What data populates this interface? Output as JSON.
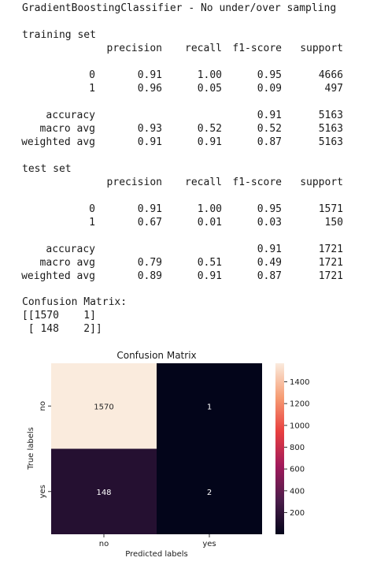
{
  "title": "GradientBoostingClassifier - No under/over sampling",
  "columns": [
    "precision",
    "recall",
    "f1-score",
    "support"
  ],
  "training": {
    "label": "training set",
    "rows": [
      {
        "name": "0",
        "precision": "0.91",
        "recall": "1.00",
        "f1": "0.95",
        "support": "4666"
      },
      {
        "name": "1",
        "precision": "0.96",
        "recall": "0.05",
        "f1": "0.09",
        "support": "497"
      }
    ],
    "summary": [
      {
        "name": "accuracy",
        "precision": "",
        "recall": "",
        "f1": "0.91",
        "support": "5163"
      },
      {
        "name": "macro avg",
        "precision": "0.93",
        "recall": "0.52",
        "f1": "0.52",
        "support": "5163"
      },
      {
        "name": "weighted avg",
        "precision": "0.91",
        "recall": "0.91",
        "f1": "0.87",
        "support": "5163"
      }
    ]
  },
  "test": {
    "label": "test set",
    "rows": [
      {
        "name": "0",
        "precision": "0.91",
        "recall": "1.00",
        "f1": "0.95",
        "support": "1571"
      },
      {
        "name": "1",
        "precision": "0.67",
        "recall": "0.01",
        "f1": "0.03",
        "support": "150"
      }
    ],
    "summary": [
      {
        "name": "accuracy",
        "precision": "",
        "recall": "",
        "f1": "0.91",
        "support": "1721"
      },
      {
        "name": "macro avg",
        "precision": "0.79",
        "recall": "0.51",
        "f1": "0.49",
        "support": "1721"
      },
      {
        "name": "weighted avg",
        "precision": "0.89",
        "recall": "0.91",
        "f1": "0.87",
        "support": "1721"
      }
    ]
  },
  "confusion_text": {
    "label": "Confusion Matrix:",
    "line1": "[[1570    1]",
    "line2": " [ 148    2]]"
  },
  "chart_data": {
    "type": "heatmap",
    "title": "Confusion Matrix",
    "xlabel": "Predicted labels",
    "ylabel": "True labels",
    "x_categories": [
      "no",
      "yes"
    ],
    "y_categories": [
      "no",
      "yes"
    ],
    "values": [
      [
        1570,
        1
      ],
      [
        148,
        2
      ]
    ],
    "colorbar": {
      "ticks": [
        200,
        400,
        600,
        800,
        1000,
        1200,
        1400
      ],
      "range": [
        1,
        1570
      ]
    },
    "colormap_stops": [
      "#03051a",
      "#4c1d4b",
      "#a11a5b",
      "#e83f3f",
      "#f69c73",
      "#faebdd"
    ]
  }
}
